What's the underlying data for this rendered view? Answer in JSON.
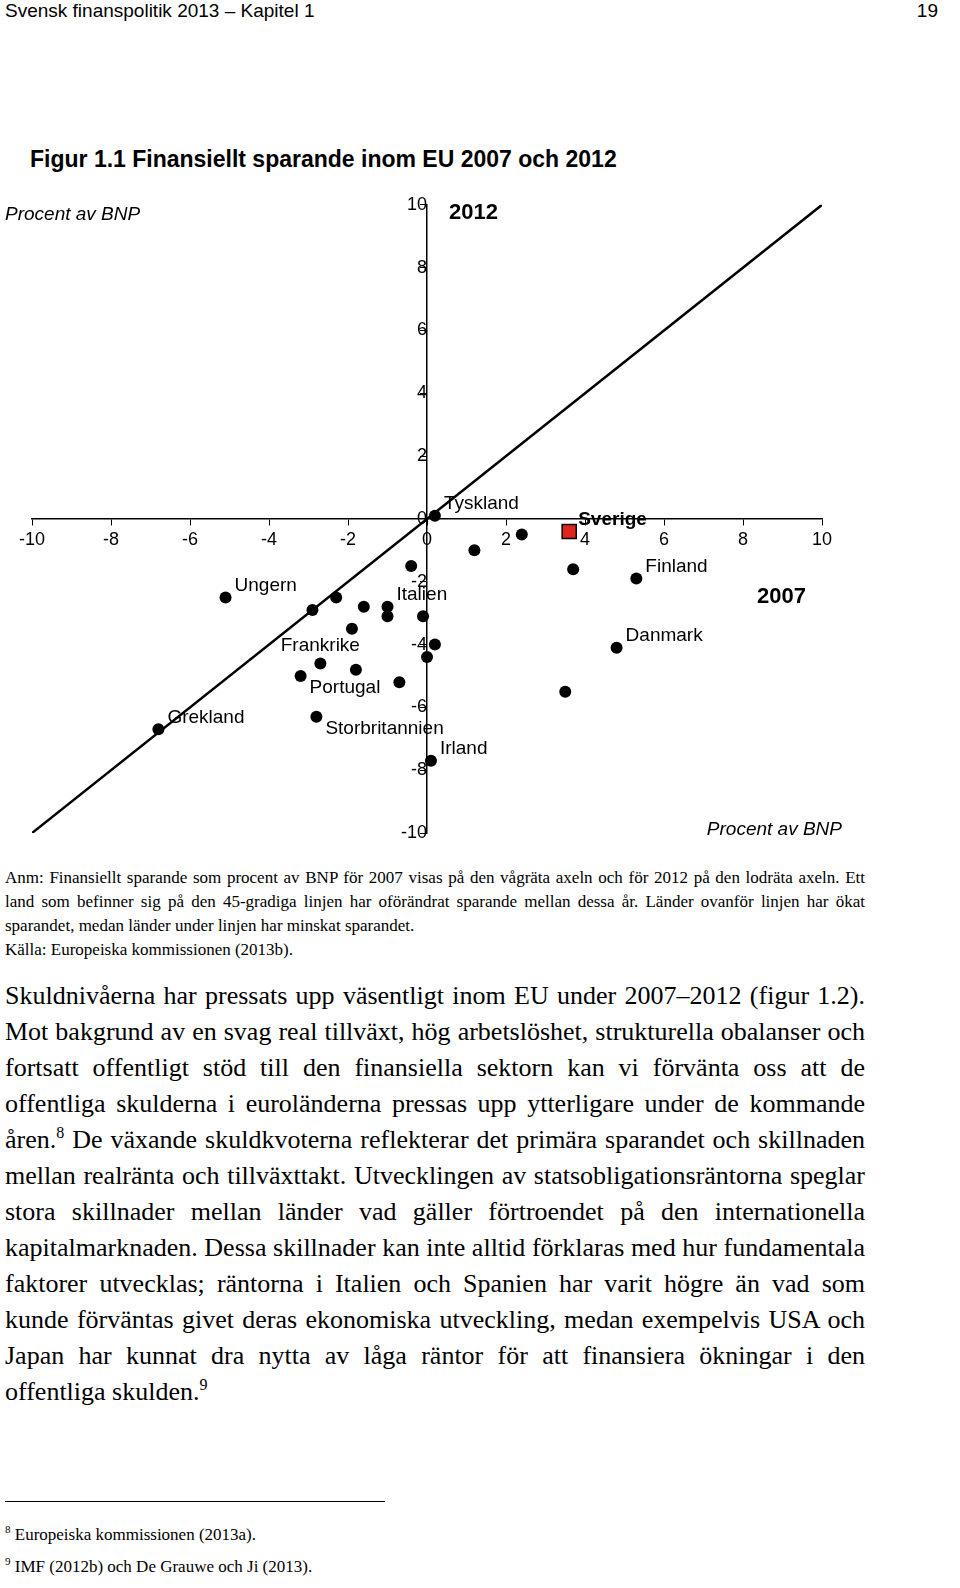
{
  "header": {
    "title": "Svensk finanspolitik 2013 – Kapitel 1",
    "page": "19"
  },
  "figure": {
    "title": "Figur 1.1 Finansiellt sparande inom EU 2007 och 2012"
  },
  "chart_data": {
    "type": "scatter",
    "xlabel": "2007",
    "ylabel": "2012",
    "xunit": "Procent av BNP",
    "yunit": "Procent av BNP",
    "xlim": [
      -10,
      10
    ],
    "ylim": [
      -10,
      10
    ],
    "xticks": [
      -10,
      -8,
      -6,
      -4,
      -2,
      0,
      2,
      4,
      6,
      8,
      10
    ],
    "yticks": [
      -10,
      -8,
      -6,
      -4,
      -2,
      0,
      2,
      4,
      6,
      8,
      10
    ],
    "grid": false,
    "color": "#000000",
    "marker": "circle",
    "reference_line": {
      "x": [
        -10,
        10
      ],
      "y": [
        -10,
        10
      ]
    },
    "points": [
      {
        "label": "Tyskland",
        "x": 0.2,
        "y": 0.1
      },
      {
        "label": "Sverige",
        "x": 3.6,
        "y": -0.4,
        "color": "#e0251b",
        "marker": "square"
      },
      {
        "label": "Finland",
        "x": 5.3,
        "y": -1.9
      },
      {
        "label": "Danmark",
        "x": 4.8,
        "y": -4.1
      },
      {
        "label": "Ungern",
        "x": -5.1,
        "y": -2.5
      },
      {
        "label": "Italien",
        "x": -1.0,
        "y": -2.8
      },
      {
        "label": "Frankrike",
        "x": -2.7,
        "y": -4.6
      },
      {
        "label": "Portugal",
        "x": -3.2,
        "y": -5.0
      },
      {
        "label": "Storbritannien",
        "x": -2.8,
        "y": -6.3
      },
      {
        "label": "Grekland",
        "x": -6.8,
        "y": -6.7
      },
      {
        "label": "Irland",
        "x": 0.1,
        "y": -7.7
      },
      {
        "label": null,
        "x": 2.4,
        "y": -0.5
      },
      {
        "label": null,
        "x": 1.2,
        "y": -1.0
      },
      {
        "label": null,
        "x": 3.7,
        "y": -1.6
      },
      {
        "label": null,
        "x": 3.5,
        "y": -5.5
      },
      {
        "label": null,
        "x": -0.4,
        "y": -1.5
      },
      {
        "label": null,
        "x": -2.9,
        "y": -2.9
      },
      {
        "label": null,
        "x": -2.3,
        "y": -2.5
      },
      {
        "label": null,
        "x": -1.6,
        "y": -2.8
      },
      {
        "label": null,
        "x": -1.0,
        "y": -3.1
      },
      {
        "label": null,
        "x": -0.1,
        "y": -3.1
      },
      {
        "label": null,
        "x": -1.9,
        "y": -3.5
      },
      {
        "label": null,
        "x": 0.2,
        "y": -4.0
      },
      {
        "label": null,
        "x": 0.0,
        "y": -4.4
      },
      {
        "label": null,
        "x": -1.8,
        "y": -4.8
      },
      {
        "label": null,
        "x": -0.7,
        "y": -5.2
      }
    ]
  },
  "note": [
    "Anm: Finansiellt sparande som procent av BNP för 2007 visas på den vågräta axeln och för 2012 på den lodräta axeln. Ett land som befinner sig på den 45-gradiga linjen har oförändrat sparande mellan dessa år. Länder ovanför linjen har ökat sparandet, medan länder under linjen har minskat sparandet.",
    "Källa: Europeiska kommissionen (2013b)."
  ],
  "body": [
    {
      "text": "Skuldnivåerna har pressats upp väsentligt inom EU under 2007–2012 (figur 1.2). Mot bakgrund av en svag real tillväxt, hög arbetslöshet, strukturella obalanser och fortsatt offentligt stöd till den finansiella sektorn kan vi förvänta oss att de offentliga skulderna i euroländerna pressas upp ytterligare under de kommande åren.",
      "footnote": "8"
    },
    {
      "text": " De växande skuldkvoterna reflekterar det primära sparandet och skillnaden mellan realränta och tillväxttakt. Utvecklingen av statsobligationsräntorna speglar stora skillnader mellan länder vad gäller förtroendet på den internationella kapitalmarknaden. Dessa skillnader kan inte alltid förklaras med hur fundamentala faktorer utvecklas; räntorna i Italien och Spanien har varit högre än vad som kunde förväntas givet deras ekonomiska utveckling, medan exempelvis USA och Japan har kunnat dra nytta av låga räntor för att finansiera ökningar i den offentliga skulden.",
      "footnote": "9"
    }
  ],
  "footnotes": [
    {
      "number": "8",
      "text": "Europeiska kommissionen (2013a)."
    },
    {
      "number": "9",
      "text": "IMF (2012b) och De Grauwe och Ji (2013)."
    }
  ]
}
